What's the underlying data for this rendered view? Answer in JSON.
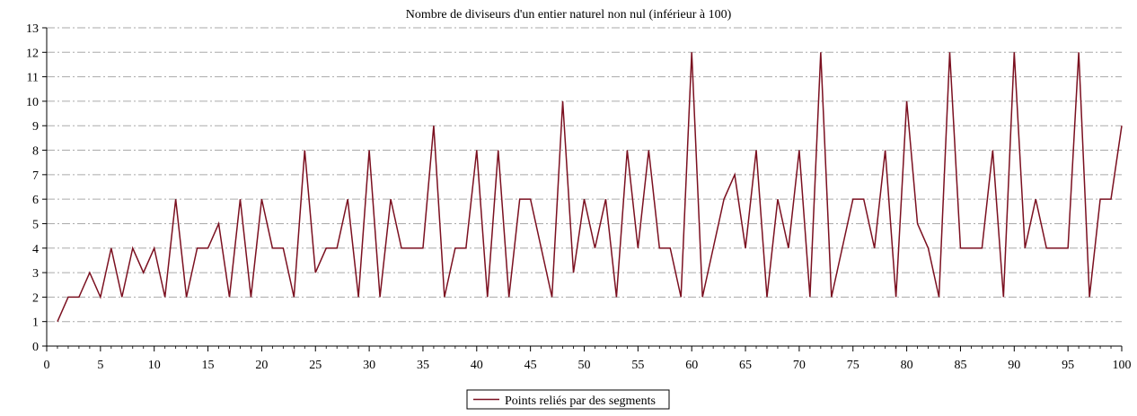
{
  "chart_data": {
    "type": "line",
    "title": "Nombre de diviseurs d'un entier naturel non nul (inférieur à 100)",
    "xlabel": "",
    "ylabel": "",
    "xlim": [
      0,
      100
    ],
    "ylim": [
      0,
      13
    ],
    "x_ticks": [
      0,
      5,
      10,
      15,
      20,
      25,
      30,
      35,
      40,
      45,
      50,
      55,
      60,
      65,
      70,
      75,
      80,
      85,
      90,
      95,
      100
    ],
    "y_ticks": [
      0,
      1,
      2,
      3,
      4,
      5,
      6,
      7,
      8,
      9,
      10,
      11,
      12,
      13
    ],
    "grid": true,
    "legend_position": "bottom-center",
    "colors": {
      "line": "#7b1020",
      "grid": "#aaaaaa",
      "axis": "#000000"
    },
    "series": [
      {
        "name": "Points reliés par des segments",
        "x": [
          1,
          2,
          3,
          4,
          5,
          6,
          7,
          8,
          9,
          10,
          11,
          12,
          13,
          14,
          15,
          16,
          17,
          18,
          19,
          20,
          21,
          22,
          23,
          24,
          25,
          26,
          27,
          28,
          29,
          30,
          31,
          32,
          33,
          34,
          35,
          36,
          37,
          38,
          39,
          40,
          41,
          42,
          43,
          44,
          45,
          46,
          47,
          48,
          49,
          50,
          51,
          52,
          53,
          54,
          55,
          56,
          57,
          58,
          59,
          60,
          61,
          62,
          63,
          64,
          65,
          66,
          67,
          68,
          69,
          70,
          71,
          72,
          73,
          74,
          75,
          76,
          77,
          78,
          79,
          80,
          81,
          82,
          83,
          84,
          85,
          86,
          87,
          88,
          89,
          90,
          91,
          92,
          93,
          94,
          95,
          96,
          97,
          98,
          99,
          100
        ],
        "values": [
          1,
          2,
          2,
          3,
          2,
          4,
          2,
          4,
          3,
          4,
          2,
          6,
          2,
          4,
          4,
          5,
          2,
          6,
          2,
          6,
          4,
          4,
          2,
          8,
          3,
          4,
          4,
          6,
          2,
          8,
          2,
          6,
          4,
          4,
          4,
          9,
          2,
          4,
          4,
          8,
          2,
          8,
          2,
          6,
          6,
          4,
          2,
          10,
          3,
          6,
          4,
          6,
          2,
          8,
          4,
          8,
          4,
          4,
          2,
          12,
          2,
          4,
          6,
          7,
          4,
          8,
          2,
          6,
          4,
          8,
          2,
          12,
          2,
          4,
          6,
          6,
          4,
          8,
          2,
          10,
          5,
          4,
          2,
          12,
          4,
          4,
          4,
          8,
          2,
          12,
          4,
          6,
          4,
          4,
          4,
          12,
          2,
          6,
          6,
          9
        ]
      }
    ]
  }
}
